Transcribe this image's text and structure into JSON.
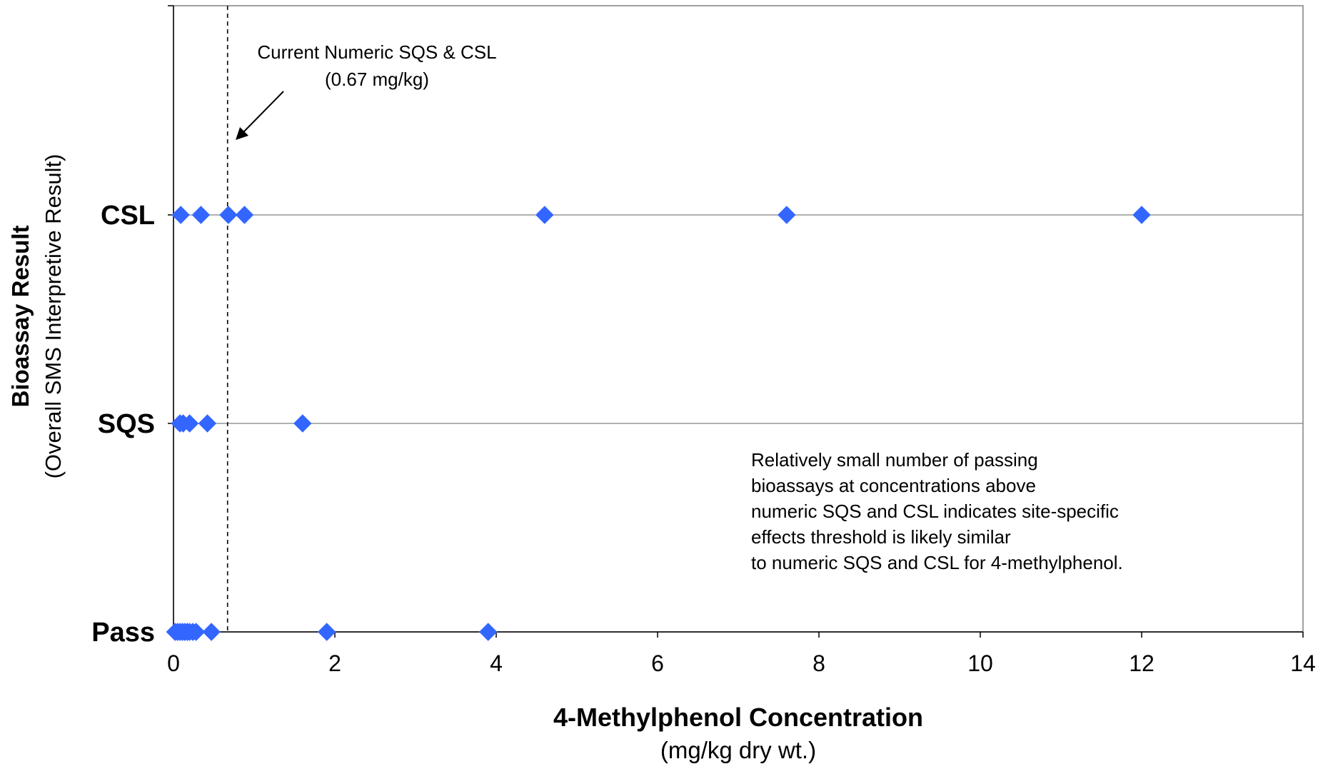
{
  "chart_data": {
    "type": "scatter",
    "xlabel": "4-Methylphenol Concentration",
    "xlabel_units": "(mg/kg dry wt.)",
    "ylabel": "Bioassay Result",
    "ylabel_sub": "(Overall SMS Interpretive Result)",
    "xlim": [
      0,
      14
    ],
    "x_ticks": [
      0,
      2,
      4,
      6,
      8,
      10,
      12,
      14
    ],
    "categories": [
      "Pass",
      "SQS",
      "CSL"
    ],
    "grid": "horizontal at categories",
    "marker": "diamond",
    "marker_color": "#3366ff",
    "series": [
      {
        "category": "CSL",
        "x": [
          0.09,
          0.34,
          0.68,
          0.88,
          4.6,
          7.6,
          12.0
        ]
      },
      {
        "category": "SQS",
        "x": [
          0.08,
          0.12,
          0.2,
          0.42,
          1.6
        ]
      },
      {
        "category": "Pass",
        "x": [
          0.02,
          0.05,
          0.08,
          0.11,
          0.14,
          0.17,
          0.2,
          0.24,
          0.28,
          0.47,
          1.9,
          3.9
        ]
      }
    ],
    "reference_line": {
      "x": 0.67,
      "style": "dashed",
      "label_line1": "Current Numeric SQS & CSL",
      "label_line2": "(0.67 mg/kg)"
    },
    "annotation_lines": [
      "Relatively small number of passing",
      "bioassays at concentrations above",
      "numeric SQS and CSL indicates site-specific",
      "effects threshold is likely similar",
      "to numeric SQS and CSL for 4-methylphenol."
    ]
  }
}
